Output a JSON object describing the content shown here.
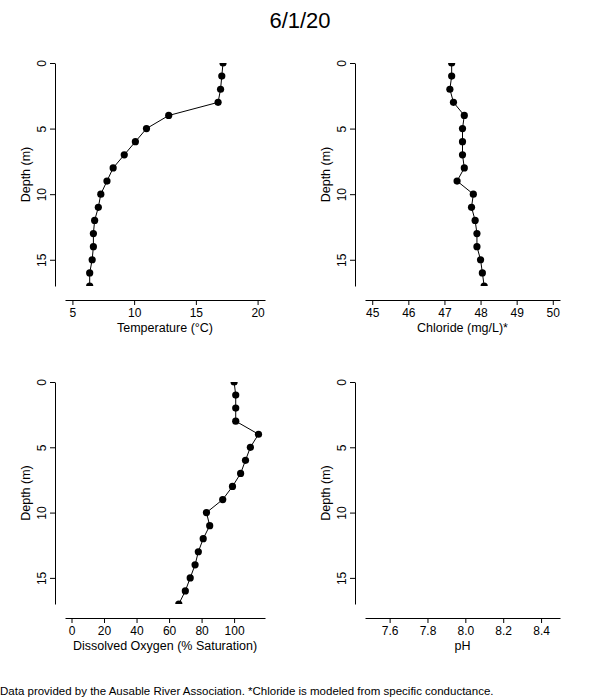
{
  "title": "6/1/20",
  "caption": "Data provided by the Ausable River Association. *Chloride is modeled from specific conductance.",
  "chart_data": [
    {
      "type": "line",
      "xlabel": "Temperature (°C)",
      "ylabel": "Depth (m)",
      "color": "#000000",
      "marker": "circle",
      "line_style": "solid",
      "xlim": [
        4.4,
        20.6
      ],
      "xticks": [
        5,
        10,
        15,
        20
      ],
      "ylim": [
        17,
        0
      ],
      "yticks": [
        0,
        5,
        10,
        15
      ],
      "y": [
        0,
        1,
        2,
        3,
        4,
        5,
        6,
        7,
        8,
        9,
        10,
        11,
        12,
        13,
        14,
        15,
        16,
        17
      ],
      "x": [
        17.2,
        17.1,
        17.0,
        16.8,
        12.8,
        11.0,
        10.1,
        9.2,
        8.3,
        7.8,
        7.3,
        7.1,
        6.8,
        6.7,
        6.7,
        6.6,
        6.4,
        6.4
      ]
    },
    {
      "type": "line",
      "xlabel": "Chloride (mg/L)*",
      "ylabel": "Depth (m)",
      "color": "#000000",
      "marker": "circle",
      "line_style": "solid",
      "xlim": [
        44.8,
        50.2
      ],
      "xticks": [
        45,
        46,
        47,
        48,
        49,
        50
      ],
      "ylim": [
        17,
        0
      ],
      "yticks": [
        0,
        5,
        10,
        15
      ],
      "y": [
        0,
        1,
        2,
        3,
        4,
        5,
        6,
        7,
        8,
        9,
        10,
        11,
        12,
        13,
        14,
        15,
        16,
        17
      ],
      "x": [
        47.2,
        47.2,
        47.15,
        47.25,
        47.55,
        47.5,
        47.5,
        47.5,
        47.55,
        47.35,
        47.8,
        47.75,
        47.85,
        47.9,
        47.9,
        48.0,
        48.05,
        48.1
      ]
    },
    {
      "type": "line",
      "xlabel": "Dissolved Oxygen (% Saturation)",
      "ylabel": "Depth (m)",
      "color": "#000000",
      "marker": "circle",
      "line_style": "solid",
      "xlim": [
        -4,
        119
      ],
      "xticks": [
        0,
        20,
        40,
        60,
        80,
        100
      ],
      "ylim": [
        17,
        0
      ],
      "yticks": [
        0,
        5,
        10,
        15
      ],
      "y": [
        0,
        1,
        2,
        3,
        4,
        5,
        6,
        7,
        8,
        9,
        10,
        11,
        12,
        13,
        14,
        15,
        16,
        17
      ],
      "x": [
        100,
        101,
        101,
        101,
        115,
        110,
        107,
        104,
        99,
        93,
        83,
        85,
        81,
        78,
        76,
        73,
        70,
        66
      ]
    },
    {
      "type": "line",
      "xlabel": "pH",
      "ylabel": "Depth (m)",
      "color": "#000000",
      "marker": "circle",
      "line_style": "solid",
      "xlim": [
        7.47,
        8.5
      ],
      "xticks": [
        7.6,
        7.8,
        {
          "value": 8,
          "label": "8.0"
        },
        8.2,
        8.4
      ],
      "ylim": [
        17,
        0
      ],
      "yticks": [
        0,
        5,
        10,
        15
      ],
      "y": [],
      "x": []
    }
  ]
}
